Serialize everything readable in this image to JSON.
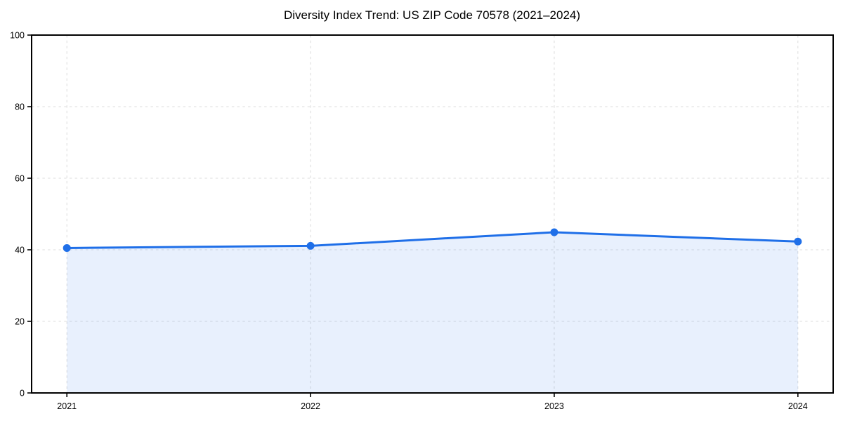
{
  "page": {
    "background": "#ffffff"
  },
  "chart_data": {
    "type": "line",
    "title": "Diversity Index Trend: US ZIP Code 70578 (2021–2024)",
    "x": [
      "2021",
      "2022",
      "2023",
      "2024"
    ],
    "series": [
      {
        "name": "Diversity Index",
        "values": [
          40.5,
          41.1,
          44.9,
          42.3
        ]
      }
    ],
    "xlabel": "",
    "ylabel": "",
    "ylim": [
      0,
      100
    ],
    "yticks": [
      0,
      20,
      40,
      60,
      80,
      100
    ],
    "grid": "dashed, both axes",
    "legend_position": "none",
    "area_fill": true,
    "marker": "circle",
    "colors": {
      "line": "#1f6fe8",
      "marker": "#1f6fe8",
      "area_fill": "rgba(31,111,232,0.10)",
      "gridline": "#dedede",
      "axis": "#000000",
      "text": "#000000"
    }
  }
}
